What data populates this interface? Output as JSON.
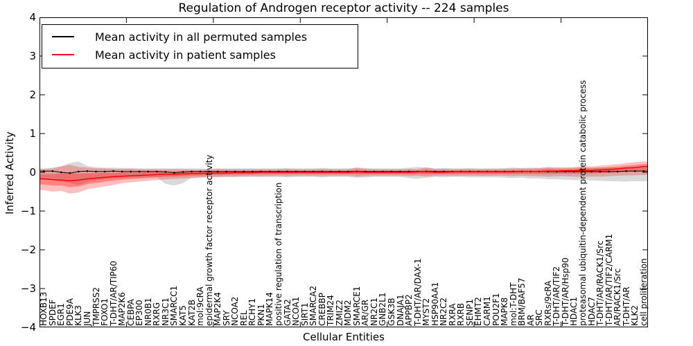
{
  "title": "Regulation of Androgen receptor activity -- 224 samples",
  "legend": [
    {
      "label": "Mean activity in all permuted samples",
      "color": "#000000"
    },
    {
      "label": "Mean activity in patient samples",
      "color": "#ff0000"
    }
  ],
  "axis": {
    "ylabel": "Inferred Activity",
    "xlabel": "Cellular Entities",
    "ytick_labels": [
      "4",
      "3",
      "2",
      "1",
      "0",
      "−1",
      "−2",
      "−3",
      "−4"
    ]
  },
  "colors": {
    "permuted_line": "#000000",
    "patient_line": "#ff0000",
    "permuted_band": "#aaaaaa",
    "patient_band": "#ff0000",
    "frame": "#000000"
  },
  "chart_data": {
    "type": "line",
    "title": "Regulation of Androgen receptor activity -- 224 samples",
    "xlabel": "Cellular Entities",
    "ylabel": "Inferred Activity",
    "ylim": [
      -4,
      4
    ],
    "yticks": [
      4,
      3,
      2,
      1,
      0,
      -1,
      -2,
      -3,
      -4
    ],
    "grid": false,
    "legend_position": "upper left",
    "categories": [
      "HOXB13",
      "SPDEF",
      "EGR1",
      "PDE9A",
      "KLK3",
      "JUN",
      "TMPRSS2",
      "FOXO1",
      "T-DHT/AR/TIP60",
      "MAP2K6",
      "CEBPA",
      "EP300",
      "NR0B1",
      "RXRG",
      "NR3C1",
      "SMARCC1",
      "KAT5",
      "KAT2B",
      "mol:9cRA",
      "epidermal growth factor receptor activity",
      "MAP2K4",
      "SRY",
      "NCOA2",
      "REL",
      "RCHY1",
      "PKN1",
      "MAPK14",
      "positive regulation of transcription",
      "GATA2",
      "NCOA1",
      "SIRT1",
      "SMARCA2",
      "CREBBP",
      "TRIM24",
      "ZMIZ2",
      "MDM2",
      "SMARCE1",
      "AR/GR",
      "NR2C1",
      "GNB2L1",
      "GSK3B",
      "DNAJA1",
      "APPBP2",
      "T-DHT/AR/DAX-1",
      "MYST2",
      "HSP90AA1",
      "NR2C2",
      "RXRA",
      "RXRB",
      "SENP1",
      "EHMT2",
      "CARM1",
      "POU2F1",
      "MAPK8",
      "mol:T-DHT",
      "BRM/BAF57",
      "AR",
      "SRC",
      "RXRs/9cRA",
      "T-DHT/AR/TIF2",
      "T-DHT/AR/Hsp90",
      "HDAC1",
      "proteasomal ubiquitin-dependent protein catabolic process",
      "HDAC7",
      "T-DHT/AR/RACK1/Src",
      "T-DHT/AR/TIF2/CARM1",
      "AR/RACK1/Src",
      "T-DHT/AR",
      "KLK2",
      "cell proliferation"
    ],
    "series": [
      {
        "name": "Mean activity in all permuted samples",
        "color": "#000000",
        "values": [
          0.03,
          0.03,
          0.0,
          -0.02,
          0.02,
          0.03,
          0.02,
          0.02,
          0.03,
          0.02,
          0.02,
          0.02,
          0.02,
          0.02,
          0.01,
          -0.01,
          0.01,
          0.02,
          0.02,
          0.02,
          0.02,
          0.02,
          0.02,
          0.02,
          0.02,
          0.02,
          0.02,
          0.02,
          0.02,
          0.02,
          0.02,
          0.02,
          0.02,
          0.02,
          0.02,
          0.02,
          0.02,
          0.02,
          0.02,
          0.02,
          0.02,
          0.02,
          0.02,
          0.02,
          0.02,
          0.02,
          0.02,
          0.02,
          0.02,
          0.02,
          0.02,
          0.02,
          0.02,
          0.02,
          0.02,
          0.02,
          0.02,
          0.02,
          0.02,
          0.02,
          0.02,
          0.02,
          0.02,
          0.02,
          0.02,
          0.02,
          0.02,
          0.03,
          0.03,
          0.03
        ]
      },
      {
        "name": "Mean activity in patient samples",
        "color": "#ff0000",
        "values": [
          -0.17,
          -0.19,
          -0.2,
          -0.22,
          -0.2,
          -0.17,
          -0.15,
          -0.13,
          -0.11,
          -0.1,
          -0.09,
          -0.08,
          -0.07,
          -0.06,
          -0.05,
          -0.05,
          -0.04,
          -0.03,
          -0.03,
          -0.02,
          -0.02,
          -0.02,
          -0.01,
          -0.01,
          -0.01,
          0.0,
          0.0,
          0.0,
          0.0,
          0.0,
          0.0,
          0.0,
          0.0,
          0.0,
          0.0,
          0.0,
          0.01,
          0.0,
          0.0,
          0.0,
          0.0,
          0.0,
          0.0,
          0.01,
          0.01,
          0.0,
          0.0,
          0.01,
          0.01,
          0.01,
          0.01,
          0.01,
          0.01,
          0.01,
          0.01,
          0.02,
          0.02,
          0.02,
          0.03,
          0.03,
          0.04,
          0.04,
          0.05,
          0.05,
          0.06,
          0.07,
          0.09,
          0.11,
          0.12,
          0.15
        ]
      }
    ],
    "bands": [
      {
        "name": "permuted samples range",
        "color": "#aaaaaa",
        "opacity": 0.45,
        "upper": [
          0.1,
          0.12,
          0.16,
          0.24,
          0.28,
          0.16,
          0.13,
          0.12,
          0.12,
          0.11,
          0.11,
          0.1,
          0.1,
          0.1,
          0.1,
          0.1,
          0.1,
          0.1,
          0.1,
          0.09,
          0.1,
          0.1,
          0.1,
          0.1,
          0.1,
          0.1,
          0.1,
          0.1,
          0.11,
          0.1,
          0.1,
          0.1,
          0.11,
          0.1,
          0.1,
          0.1,
          0.12,
          0.11,
          0.1,
          0.1,
          0.1,
          0.1,
          0.12,
          0.14,
          0.12,
          0.1,
          0.11,
          0.1,
          0.1,
          0.11,
          0.1,
          0.1,
          0.1,
          0.11,
          0.12,
          0.11,
          0.12,
          0.11,
          0.12,
          0.12,
          0.12,
          0.12,
          0.13,
          0.12,
          0.13,
          0.13,
          0.12,
          0.12,
          0.11,
          0.12
        ],
        "lower": [
          -0.18,
          -0.2,
          -0.24,
          -0.28,
          -0.33,
          -0.25,
          -0.2,
          -0.18,
          -0.16,
          -0.15,
          -0.14,
          -0.14,
          -0.13,
          -0.13,
          -0.3,
          -0.34,
          -0.28,
          -0.14,
          -0.13,
          -0.12,
          -0.12,
          -0.12,
          -0.12,
          -0.12,
          -0.12,
          -0.12,
          -0.12,
          -0.12,
          -0.13,
          -0.12,
          -0.12,
          -0.12,
          -0.13,
          -0.12,
          -0.12,
          -0.12,
          -0.14,
          -0.13,
          -0.12,
          -0.12,
          -0.12,
          -0.12,
          -0.15,
          -0.17,
          -0.14,
          -0.12,
          -0.13,
          -0.12,
          -0.12,
          -0.13,
          -0.13,
          -0.13,
          -0.13,
          -0.14,
          -0.15,
          -0.14,
          -0.16,
          -0.16,
          -0.18,
          -0.18,
          -0.19,
          -0.2,
          -0.21,
          -0.21,
          -0.22,
          -0.23,
          -0.23,
          -0.24,
          -0.23,
          -0.23
        ]
      },
      {
        "name": "patient samples range",
        "color": "#ff0000",
        "opacity": 0.25,
        "upper": [
          0.08,
          0.1,
          0.15,
          0.19,
          0.14,
          0.12,
          0.1,
          0.1,
          0.09,
          0.09,
          0.09,
          0.08,
          0.08,
          0.08,
          0.08,
          0.08,
          0.08,
          0.07,
          0.07,
          0.07,
          0.09,
          0.08,
          0.08,
          0.08,
          0.08,
          0.08,
          0.08,
          0.08,
          0.09,
          0.08,
          0.08,
          0.08,
          0.09,
          0.08,
          0.08,
          0.08,
          0.12,
          0.09,
          0.08,
          0.08,
          0.08,
          0.08,
          0.09,
          0.08,
          0.13,
          0.09,
          0.09,
          0.08,
          0.09,
          0.09,
          0.08,
          0.09,
          0.09,
          0.09,
          0.1,
          0.1,
          0.1,
          0.11,
          0.14,
          0.12,
          0.12,
          0.13,
          0.16,
          0.15,
          0.17,
          0.19,
          0.21,
          0.24,
          0.26,
          0.28
        ],
        "lower": [
          -0.46,
          -0.5,
          -0.48,
          -0.55,
          -0.52,
          -0.44,
          -0.4,
          -0.36,
          -0.33,
          -0.28,
          -0.26,
          -0.24,
          -0.22,
          -0.2,
          -0.18,
          -0.17,
          -0.16,
          -0.15,
          -0.14,
          -0.12,
          -0.12,
          -0.11,
          -0.11,
          -0.1,
          -0.1,
          -0.1,
          -0.1,
          -0.09,
          -0.1,
          -0.09,
          -0.09,
          -0.09,
          -0.1,
          -0.09,
          -0.09,
          -0.09,
          -0.11,
          -0.1,
          -0.09,
          -0.09,
          -0.09,
          -0.09,
          -0.1,
          -0.09,
          -0.11,
          -0.09,
          -0.09,
          -0.09,
          -0.09,
          -0.09,
          -0.09,
          -0.09,
          -0.09,
          -0.09,
          -0.1,
          -0.09,
          -0.1,
          -0.1,
          -0.11,
          -0.1,
          -0.1,
          -0.11,
          -0.12,
          -0.11,
          -0.11,
          -0.1,
          -0.09,
          -0.08,
          -0.08,
          -0.07
        ]
      }
    ]
  }
}
